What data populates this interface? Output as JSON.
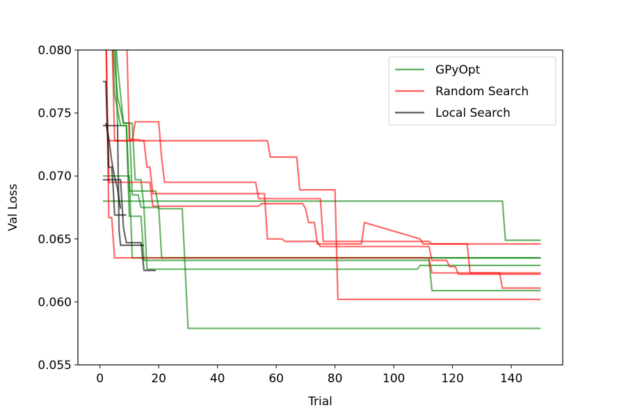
{
  "chart_data": {
    "type": "line",
    "title": "",
    "xlabel": "Trial",
    "ylabel": "Val Loss",
    "xlim": [
      -7.5,
      157.5
    ],
    "ylim": [
      0.055,
      0.08
    ],
    "xticks": [
      0,
      20,
      40,
      60,
      80,
      100,
      120,
      140
    ],
    "yticks": [
      0.055,
      0.06,
      0.065,
      0.07,
      0.075,
      0.08
    ],
    "ytick_labels": [
      "0.055",
      "0.060",
      "0.065",
      "0.070",
      "0.075",
      "0.080"
    ],
    "grid": false,
    "legend": {
      "position": "top-right",
      "entries": [
        {
          "label": "GPyOpt",
          "color": "#008000"
        },
        {
          "label": "Random Search",
          "color": "#ff0000"
        },
        {
          "label": "Local Search",
          "color": "#000000"
        }
      ]
    },
    "series": [
      {
        "group": "GPyOpt",
        "color": "#008000",
        "points": [
          [
            1,
            0.068
          ],
          [
            137,
            0.068
          ],
          [
            138,
            0.0649
          ],
          [
            150,
            0.0649
          ]
        ]
      },
      {
        "group": "GPyOpt",
        "color": "#008000",
        "points": [
          [
            5,
            0.082
          ],
          [
            6,
            0.0788
          ],
          [
            8,
            0.0742
          ],
          [
            11,
            0.0742
          ],
          [
            12,
            0.0697
          ],
          [
            14,
            0.0697
          ],
          [
            15,
            0.0675
          ],
          [
            16,
            0.0626
          ],
          [
            108,
            0.0626
          ],
          [
            109,
            0.0629
          ],
          [
            150,
            0.0629
          ]
        ]
      },
      {
        "group": "GPyOpt",
        "color": "#008000",
        "points": [
          [
            4,
            0.082
          ],
          [
            6,
            0.0763
          ],
          [
            8,
            0.0742
          ],
          [
            10,
            0.0742
          ],
          [
            11,
            0.0685
          ],
          [
            13,
            0.0685
          ],
          [
            14,
            0.0675
          ],
          [
            20,
            0.0675
          ],
          [
            21,
            0.0635
          ],
          [
            150,
            0.0635
          ]
        ]
      },
      {
        "group": "GPyOpt",
        "color": "#008000",
        "points": [
          [
            4,
            0.082
          ],
          [
            5,
            0.0765
          ],
          [
            7,
            0.074
          ],
          [
            9,
            0.074
          ],
          [
            10,
            0.0688
          ],
          [
            19,
            0.0688
          ],
          [
            20,
            0.0674
          ],
          [
            28,
            0.0674
          ],
          [
            30,
            0.0579
          ],
          [
            150,
            0.0579
          ]
        ]
      },
      {
        "group": "GPyOpt",
        "color": "#008000",
        "points": [
          [
            5,
            0.082
          ],
          [
            6,
            0.074
          ],
          [
            9,
            0.074
          ],
          [
            10,
            0.0668
          ],
          [
            14,
            0.0668
          ],
          [
            15,
            0.0633
          ],
          [
            112,
            0.0633
          ],
          [
            113,
            0.0609
          ],
          [
            150,
            0.0609
          ]
        ]
      },
      {
        "group": "GPyOpt",
        "color": "#008000",
        "points": [
          [
            1,
            0.07
          ],
          [
            10,
            0.07
          ],
          [
            11,
            0.0635
          ],
          [
            150,
            0.0635
          ]
        ]
      },
      {
        "group": "Random Search",
        "color": "#ff0000",
        "points": [
          [
            2,
            0.082
          ],
          [
            3,
            0.0667
          ],
          [
            4,
            0.0667
          ],
          [
            5,
            0.0635
          ],
          [
            112,
            0.0635
          ],
          [
            113,
            0.0623
          ],
          [
            150,
            0.0623
          ]
        ]
      },
      {
        "group": "Random Search",
        "color": "#ff0000",
        "points": [
          [
            4,
            0.082
          ],
          [
            5,
            0.0728
          ],
          [
            11,
            0.0728
          ],
          [
            12,
            0.0743
          ],
          [
            20,
            0.0743
          ],
          [
            21,
            0.0714
          ],
          [
            22,
            0.0695
          ],
          [
            53,
            0.0695
          ],
          [
            54,
            0.0682
          ],
          [
            75,
            0.0682
          ],
          [
            76,
            0.0648
          ],
          [
            112,
            0.0648
          ],
          [
            113,
            0.0646
          ],
          [
            150,
            0.0646
          ]
        ]
      },
      {
        "group": "Random Search",
        "color": "#ff0000",
        "points": [
          [
            9,
            0.082
          ],
          [
            10,
            0.0729
          ],
          [
            13,
            0.0729
          ],
          [
            14,
            0.0728
          ],
          [
            57,
            0.0728
          ],
          [
            58,
            0.0715
          ],
          [
            67,
            0.0715
          ],
          [
            68,
            0.0689
          ],
          [
            80,
            0.0689
          ],
          [
            81,
            0.0602
          ],
          [
            150,
            0.0602
          ]
        ]
      },
      {
        "group": "Random Search",
        "color": "#ff0000",
        "points": [
          [
            3,
            0.0728
          ],
          [
            15,
            0.0728
          ],
          [
            16,
            0.0707
          ],
          [
            17,
            0.0707
          ],
          [
            18,
            0.0686
          ],
          [
            56,
            0.0686
          ],
          [
            57,
            0.065
          ],
          [
            62,
            0.065
          ],
          [
            63,
            0.0648
          ],
          [
            74,
            0.0648
          ],
          [
            75,
            0.0644
          ],
          [
            112,
            0.0644
          ],
          [
            113,
            0.0633
          ],
          [
            118,
            0.0633
          ],
          [
            119,
            0.0628
          ],
          [
            121,
            0.0628
          ],
          [
            122,
            0.0622
          ],
          [
            150,
            0.0622
          ]
        ]
      },
      {
        "group": "Random Search",
        "color": "#ff0000",
        "points": [
          [
            2,
            0.082
          ],
          [
            3,
            0.0695
          ],
          [
            17,
            0.0695
          ],
          [
            18,
            0.0676
          ],
          [
            54,
            0.0676
          ],
          [
            55,
            0.0678
          ],
          [
            69,
            0.0678
          ],
          [
            70,
            0.0674
          ],
          [
            71,
            0.0663
          ],
          [
            73,
            0.0663
          ],
          [
            74,
            0.0646
          ],
          [
            89,
            0.0646
          ],
          [
            90,
            0.0663
          ],
          [
            109,
            0.065
          ],
          [
            110,
            0.0646
          ],
          [
            125,
            0.0646
          ],
          [
            126,
            0.0623
          ],
          [
            136,
            0.0623
          ],
          [
            137,
            0.0611
          ],
          [
            150,
            0.0611
          ]
        ]
      },
      {
        "group": "Local Search",
        "color": "#000000",
        "points": [
          [
            1,
            0.0775
          ],
          [
            2,
            0.0775
          ],
          [
            2.5,
            0.074
          ],
          [
            3,
            0.0707
          ],
          [
            4,
            0.0707
          ],
          [
            4.5,
            0.0691
          ],
          [
            5,
            0.0669
          ],
          [
            9,
            0.0669
          ]
        ]
      },
      {
        "group": "Local Search",
        "color": "#000000",
        "points": [
          [
            1,
            0.074
          ],
          [
            6,
            0.074
          ],
          [
            6.5,
            0.0658
          ],
          [
            7,
            0.0645
          ],
          [
            15,
            0.0645
          ]
        ]
      },
      {
        "group": "Local Search",
        "color": "#000000",
        "points": [
          [
            1,
            0.0697
          ],
          [
            7,
            0.0697
          ],
          [
            8,
            0.0659
          ],
          [
            9,
            0.0647
          ],
          [
            11,
            0.0647
          ],
          [
            12,
            0.0647
          ],
          [
            14,
            0.0647
          ],
          [
            15,
            0.0625
          ],
          [
            19,
            0.0625
          ]
        ]
      },
      {
        "group": "Local Search",
        "color": "#000000",
        "points": [
          [
            2,
            0.0742
          ],
          [
            3,
            0.073
          ],
          [
            4,
            0.0712
          ],
          [
            5,
            0.0699
          ],
          [
            6,
            0.069
          ],
          [
            7,
            0.0674
          ]
        ]
      }
    ]
  }
}
